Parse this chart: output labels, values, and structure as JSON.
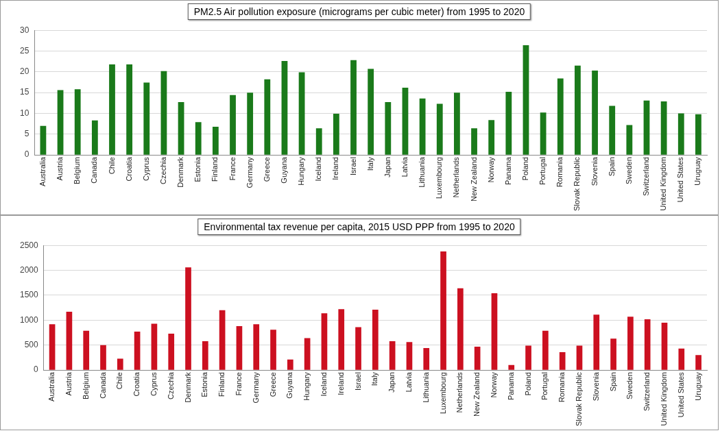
{
  "chart_data": [
    {
      "type": "bar",
      "title": "PM2.5 Air pollution exposure (micrograms per cubic meter) from 1995 to 2020",
      "categories": [
        "Australia",
        "Austria",
        "Belgium",
        "Canada",
        "Chile",
        "Croatia",
        "Cyprus",
        "Czechia",
        "Denmark",
        "Estonia",
        "Finland",
        "France",
        "Germany",
        "Greece",
        "Guyana",
        "Hungary",
        "Iceland",
        "Ireland",
        "Israel",
        "Italy",
        "Japan",
        "Latvia",
        "Lithuania",
        "Luxembourg",
        "Netherlands",
        "New Zealand",
        "Norway",
        "Panama",
        "Poland",
        "Portugal",
        "Romania",
        "Slovak Republic",
        "Slovenia",
        "Spain",
        "Sweden",
        "Switzerland",
        "United Kingdom",
        "United States",
        "Uruguay"
      ],
      "values": [
        7,
        15.6,
        15.8,
        8.3,
        21.8,
        21.8,
        17.4,
        20.2,
        12.7,
        7.9,
        6.8,
        14.4,
        15,
        18.2,
        22.6,
        19.9,
        6.4,
        9.9,
        22.8,
        20.7,
        12.7,
        16.2,
        13.6,
        12.3,
        15,
        6.4,
        8.4,
        15.2,
        26.4,
        10.2,
        18.4,
        21.5,
        20.3,
        11.8,
        7.2,
        13.1,
        12.9,
        10,
        9.8
      ],
      "color": "#1a7a1a",
      "ylim": [
        0,
        30
      ],
      "yticks": [
        0,
        5,
        10,
        15,
        20,
        25,
        30
      ],
      "grid": "y"
    },
    {
      "type": "bar",
      "title": "Environmental tax revenue per capita, 2015 USD PPP from 1995 to 2020",
      "categories": [
        "Australia",
        "Austria",
        "Belgium",
        "Canada",
        "Chile",
        "Croatia",
        "Cyprus",
        "Czechia",
        "Denmark",
        "Estonia",
        "Finland",
        "France",
        "Germany",
        "Greece",
        "Guyana",
        "Hungary",
        "Iceland",
        "Ireland",
        "Israel",
        "Italy",
        "Japan",
        "Latvia",
        "Lithuania",
        "Luxembourg",
        "Netherlands",
        "New Zealand",
        "Norway",
        "Panama",
        "Poland",
        "Portugal",
        "Romania",
        "Slovak Republic",
        "Slovenia",
        "Spain",
        "Sweden",
        "Switzerland",
        "United Kingdom",
        "United States",
        "Uruguay"
      ],
      "values": [
        920,
        1170,
        790,
        500,
        230,
        770,
        930,
        730,
        2060,
        580,
        1200,
        880,
        920,
        810,
        210,
        640,
        1140,
        1220,
        860,
        1210,
        580,
        560,
        440,
        2380,
        1640,
        470,
        1540,
        100,
        490,
        790,
        360,
        490,
        1110,
        630,
        1070,
        1020,
        950,
        430,
        300
      ],
      "color": "#cc1020",
      "ylim": [
        0,
        2500
      ],
      "yticks": [
        0,
        500,
        1000,
        1500,
        2000,
        2500
      ],
      "grid": "y"
    }
  ]
}
